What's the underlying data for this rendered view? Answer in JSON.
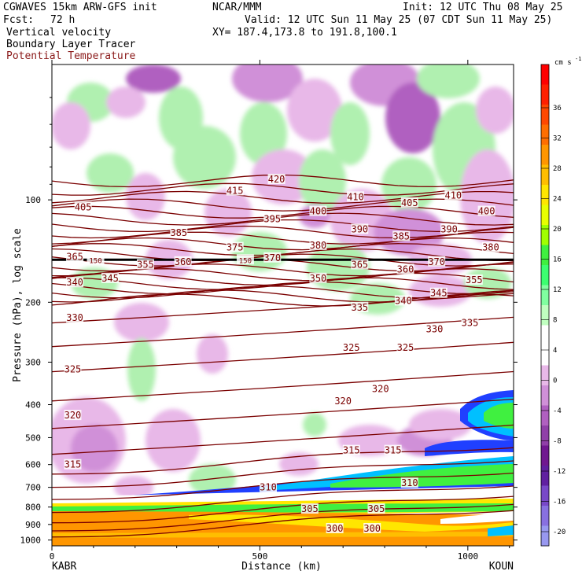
{
  "header": {
    "model": "CGWAVES 15km ARW-GFS init",
    "org": "NCAR/MMM",
    "init": "Init: 12 UTC Thu 08 May 25",
    "fcst_label": "Fcst:",
    "fcst_value": "72 h",
    "valid": "Valid: 12 UTC Sun 11 May 25 (07 CDT Sun 11 May 25)",
    "field1": "Vertical velocity",
    "field2": "Boundary Layer Tracer",
    "field3": "Potential Temperature",
    "xy": "XY= 187.4,173.8 to 191.8,100.1"
  },
  "colors": {
    "theta": "#7a0000",
    "theta_label": "#7a0000"
  },
  "chart_data": {
    "type": "heatmap",
    "xlabel": "Distance (km)",
    "ylabel": "Pressure (hPa), log scale",
    "x_ticks": [
      "0",
      "500",
      "1000"
    ],
    "y_ticks": [
      "100",
      "200",
      "300",
      "400",
      "500",
      "600",
      "700",
      "800",
      "900",
      "1000"
    ],
    "xlim": [
      0,
      1110
    ],
    "ylim": [
      1040,
      40
    ],
    "endpoints": {
      "left": "KABR",
      "right": "KOUN"
    },
    "colorbar": {
      "units": "cm s",
      "units_exp": "-1",
      "labels": [
        "36",
        "32",
        "28",
        "24",
        "20",
        "16",
        "12",
        "8",
        "4",
        "0",
        "-4",
        "-8",
        "-12",
        "-16",
        "-20"
      ],
      "colors": [
        "#ff0000",
        "#ff2000",
        "#ff4800",
        "#ff6e00",
        "#ff9600",
        "#ffbe00",
        "#ffe600",
        "#e8ff00",
        "#a0ff00",
        "#40f040",
        "#3cff70",
        "#80ffa0",
        "#c0ffc0",
        "#ffffff",
        "#ffffff",
        "#e8b8e8",
        "#d090d8",
        "#b060c0",
        "#9040a8",
        "#701890",
        "#6020a0",
        "#7848c8",
        "#8870e0",
        "#9898f0"
      ]
    },
    "theta_labels": [
      {
        "t": "420",
        "x": 540,
        "p": 87
      },
      {
        "t": "415",
        "x": 440,
        "p": 94
      },
      {
        "t": "405",
        "x": 75,
        "p": 105
      },
      {
        "t": "410",
        "x": 730,
        "p": 98
      },
      {
        "t": "405",
        "x": 860,
        "p": 102
      },
      {
        "t": "410",
        "x": 965,
        "p": 97
      },
      {
        "t": "400",
        "x": 640,
        "p": 108
      },
      {
        "t": "395",
        "x": 530,
        "p": 114
      },
      {
        "t": "400",
        "x": 1045,
        "p": 108
      },
      {
        "t": "385",
        "x": 305,
        "p": 125
      },
      {
        "t": "390",
        "x": 740,
        "p": 122
      },
      {
        "t": "385",
        "x": 840,
        "p": 128
      },
      {
        "t": "390",
        "x": 955,
        "p": 122
      },
      {
        "t": "375",
        "x": 440,
        "p": 138
      },
      {
        "t": "380",
        "x": 640,
        "p": 136
      },
      {
        "t": "380",
        "x": 1055,
        "p": 138
      },
      {
        "t": "365",
        "x": 55,
        "p": 147
      },
      {
        "t": "150",
        "x": 105,
        "p": 150
      },
      {
        "t": "355",
        "x": 225,
        "p": 155
      },
      {
        "t": "360",
        "x": 315,
        "p": 152
      },
      {
        "t": "150",
        "x": 465,
        "p": 150
      },
      {
        "t": "370",
        "x": 530,
        "p": 148
      },
      {
        "t": "365",
        "x": 740,
        "p": 155
      },
      {
        "t": "360",
        "x": 850,
        "p": 160
      },
      {
        "t": "370",
        "x": 925,
        "p": 152
      },
      {
        "t": "340",
        "x": 55,
        "p": 175
      },
      {
        "t": "345",
        "x": 140,
        "p": 170
      },
      {
        "t": "350",
        "x": 640,
        "p": 170
      },
      {
        "t": "355",
        "x": 1015,
        "p": 172
      },
      {
        "t": "345",
        "x": 930,
        "p": 188
      },
      {
        "t": "340",
        "x": 845,
        "p": 198
      },
      {
        "t": "335",
        "x": 740,
        "p": 207
      },
      {
        "t": "330",
        "x": 55,
        "p": 222
      },
      {
        "t": "330",
        "x": 920,
        "p": 240
      },
      {
        "t": "335",
        "x": 1005,
        "p": 230
      },
      {
        "t": "325",
        "x": 720,
        "p": 272
      },
      {
        "t": "325",
        "x": 850,
        "p": 272
      },
      {
        "t": "325",
        "x": 50,
        "p": 315
      },
      {
        "t": "320",
        "x": 790,
        "p": 360
      },
      {
        "t": "320",
        "x": 700,
        "p": 390
      },
      {
        "t": "320",
        "x": 50,
        "p": 430
      },
      {
        "t": "315",
        "x": 50,
        "p": 600
      },
      {
        "t": "315",
        "x": 720,
        "p": 545
      },
      {
        "t": "315",
        "x": 820,
        "p": 545
      },
      {
        "t": "310",
        "x": 520,
        "p": 700
      },
      {
        "t": "310",
        "x": 860,
        "p": 680
      },
      {
        "t": "305",
        "x": 620,
        "p": 810
      },
      {
        "t": "305",
        "x": 780,
        "p": 810
      },
      {
        "t": "300",
        "x": 680,
        "p": 925
      },
      {
        "t": "300",
        "x": 770,
        "p": 925
      }
    ]
  }
}
